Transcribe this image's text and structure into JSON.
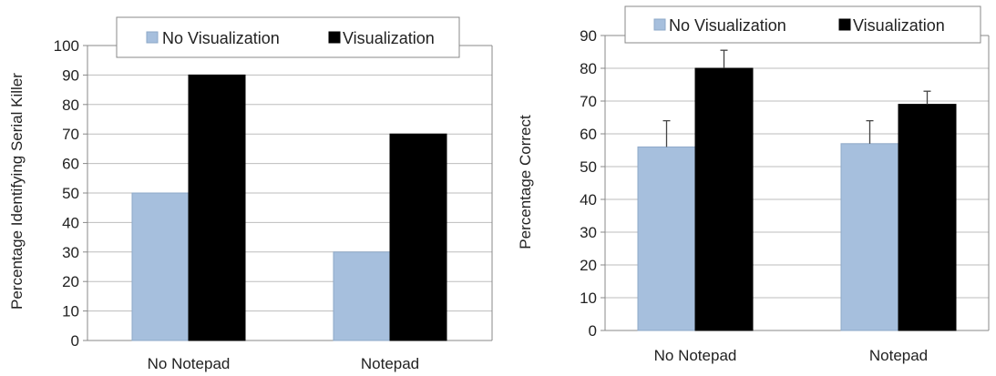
{
  "chart_data": [
    {
      "type": "bar",
      "categories": [
        "No Notepad",
        "Notepad"
      ],
      "series": [
        {
          "name": "No Visualization",
          "values": [
            50,
            30
          ],
          "color": "#a6bfdd"
        },
        {
          "name": "Visualization",
          "values": [
            90,
            70
          ],
          "color": "#000000"
        }
      ],
      "ylabel": "Percentage Identifying Serial Killer",
      "ylim": [
        0,
        100
      ],
      "yticks": [
        "0",
        "10",
        "20",
        "30",
        "40",
        "50",
        "60",
        "70",
        "80",
        "90",
        "100"
      ],
      "grid": true,
      "legend_position": "top"
    },
    {
      "type": "bar",
      "categories": [
        "No Notepad",
        "Notepad"
      ],
      "series": [
        {
          "name": "No Visualization",
          "values": [
            56,
            57
          ],
          "error": [
            8,
            7
          ],
          "color": "#a6bfdd"
        },
        {
          "name": "Visualization",
          "values": [
            80,
            69
          ],
          "error": [
            5.5,
            4
          ],
          "color": "#000000"
        }
      ],
      "ylabel": "Percentage Correct",
      "ylim": [
        0,
        90
      ],
      "yticks": [
        "0",
        "10",
        "20",
        "30",
        "40",
        "50",
        "60",
        "70",
        "80",
        "90"
      ],
      "grid": true,
      "legend_position": "top"
    }
  ]
}
